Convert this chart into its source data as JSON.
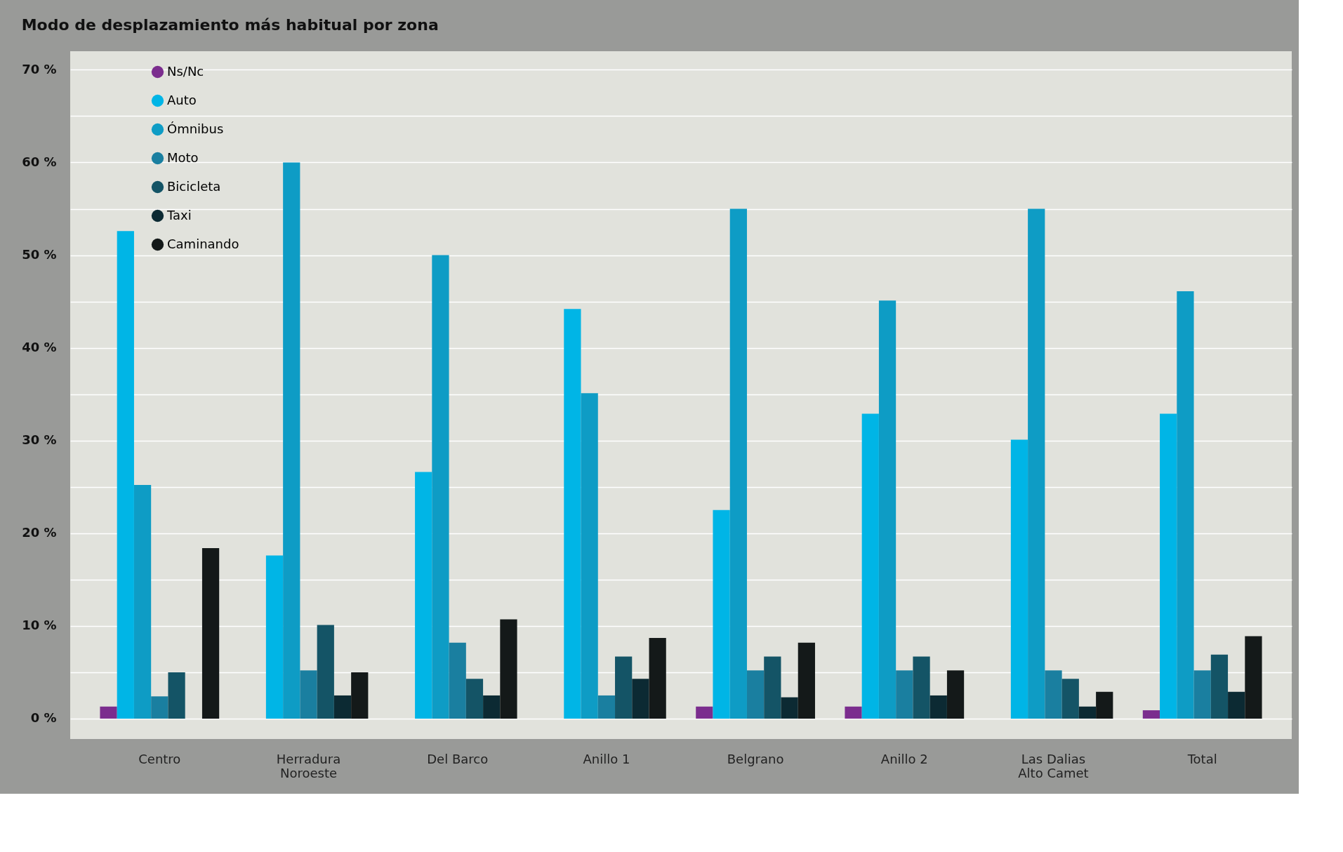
{
  "chart_data": {
    "type": "bar",
    "title": "Modo de desplazamiento más habitual por zona",
    "categories": [
      "Centro",
      "Herradura\nNoroeste",
      "Del Barco",
      "Anillo 1",
      "Belgrano",
      "Anillo 2",
      "Las Dalias\nAlto Camet",
      "Total"
    ],
    "series": [
      {
        "name": "Ns/Nc",
        "color": "#7b2d8e",
        "values": [
          1.3,
          0,
          0,
          0,
          1.3,
          1.3,
          0,
          0.9
        ]
      },
      {
        "name": "Auto",
        "color": "#00b5e6",
        "values": [
          52.6,
          17.6,
          26.6,
          44.2,
          22.5,
          32.9,
          30.1,
          32.9
        ]
      },
      {
        "name": "Ómnibus",
        "color": "#0e9cc5",
        "values": [
          25.2,
          60,
          50,
          35.1,
          55,
          45.1,
          55,
          46.1
        ]
      },
      {
        "name": "Moto",
        "color": "#1a7fa0",
        "values": [
          2.4,
          5.2,
          8.2,
          2.5,
          5.2,
          5.2,
          5.2,
          5.2
        ]
      },
      {
        "name": "Bicicleta",
        "color": "#145466",
        "values": [
          5.0,
          10.1,
          4.3,
          6.7,
          6.7,
          6.7,
          4.3,
          6.9
        ]
      },
      {
        "name": "Taxi",
        "color": "#0c2a33",
        "values": [
          0,
          2.5,
          2.5,
          4.3,
          2.3,
          2.5,
          1.3,
          2.9
        ]
      },
      {
        "name": "Caminando",
        "color": "#141919",
        "values": [
          18.4,
          5.0,
          10.7,
          8.7,
          8.2,
          5.2,
          2.9,
          8.9
        ]
      }
    ],
    "ylim": [
      -2.2,
      72
    ],
    "yticks": [
      {
        "value": 0,
        "label": "0 %"
      },
      {
        "value": 5,
        "label": null
      },
      {
        "value": 10,
        "label": "10 %"
      },
      {
        "value": 15,
        "label": null
      },
      {
        "value": 20,
        "label": "20 %"
      },
      {
        "value": 25,
        "label": null
      },
      {
        "value": 30,
        "label": "30 %"
      },
      {
        "value": 35,
        "label": null
      },
      {
        "value": 40,
        "label": "40 %"
      },
      {
        "value": 45,
        "label": null
      },
      {
        "value": 50,
        "label": "50 %"
      },
      {
        "value": 55,
        "label": null
      },
      {
        "value": 60,
        "label": "60 %"
      },
      {
        "value": 65,
        "label": null
      },
      {
        "value": 70,
        "label": "70 %"
      }
    ],
    "grid": "y",
    "legend": "top left"
  }
}
